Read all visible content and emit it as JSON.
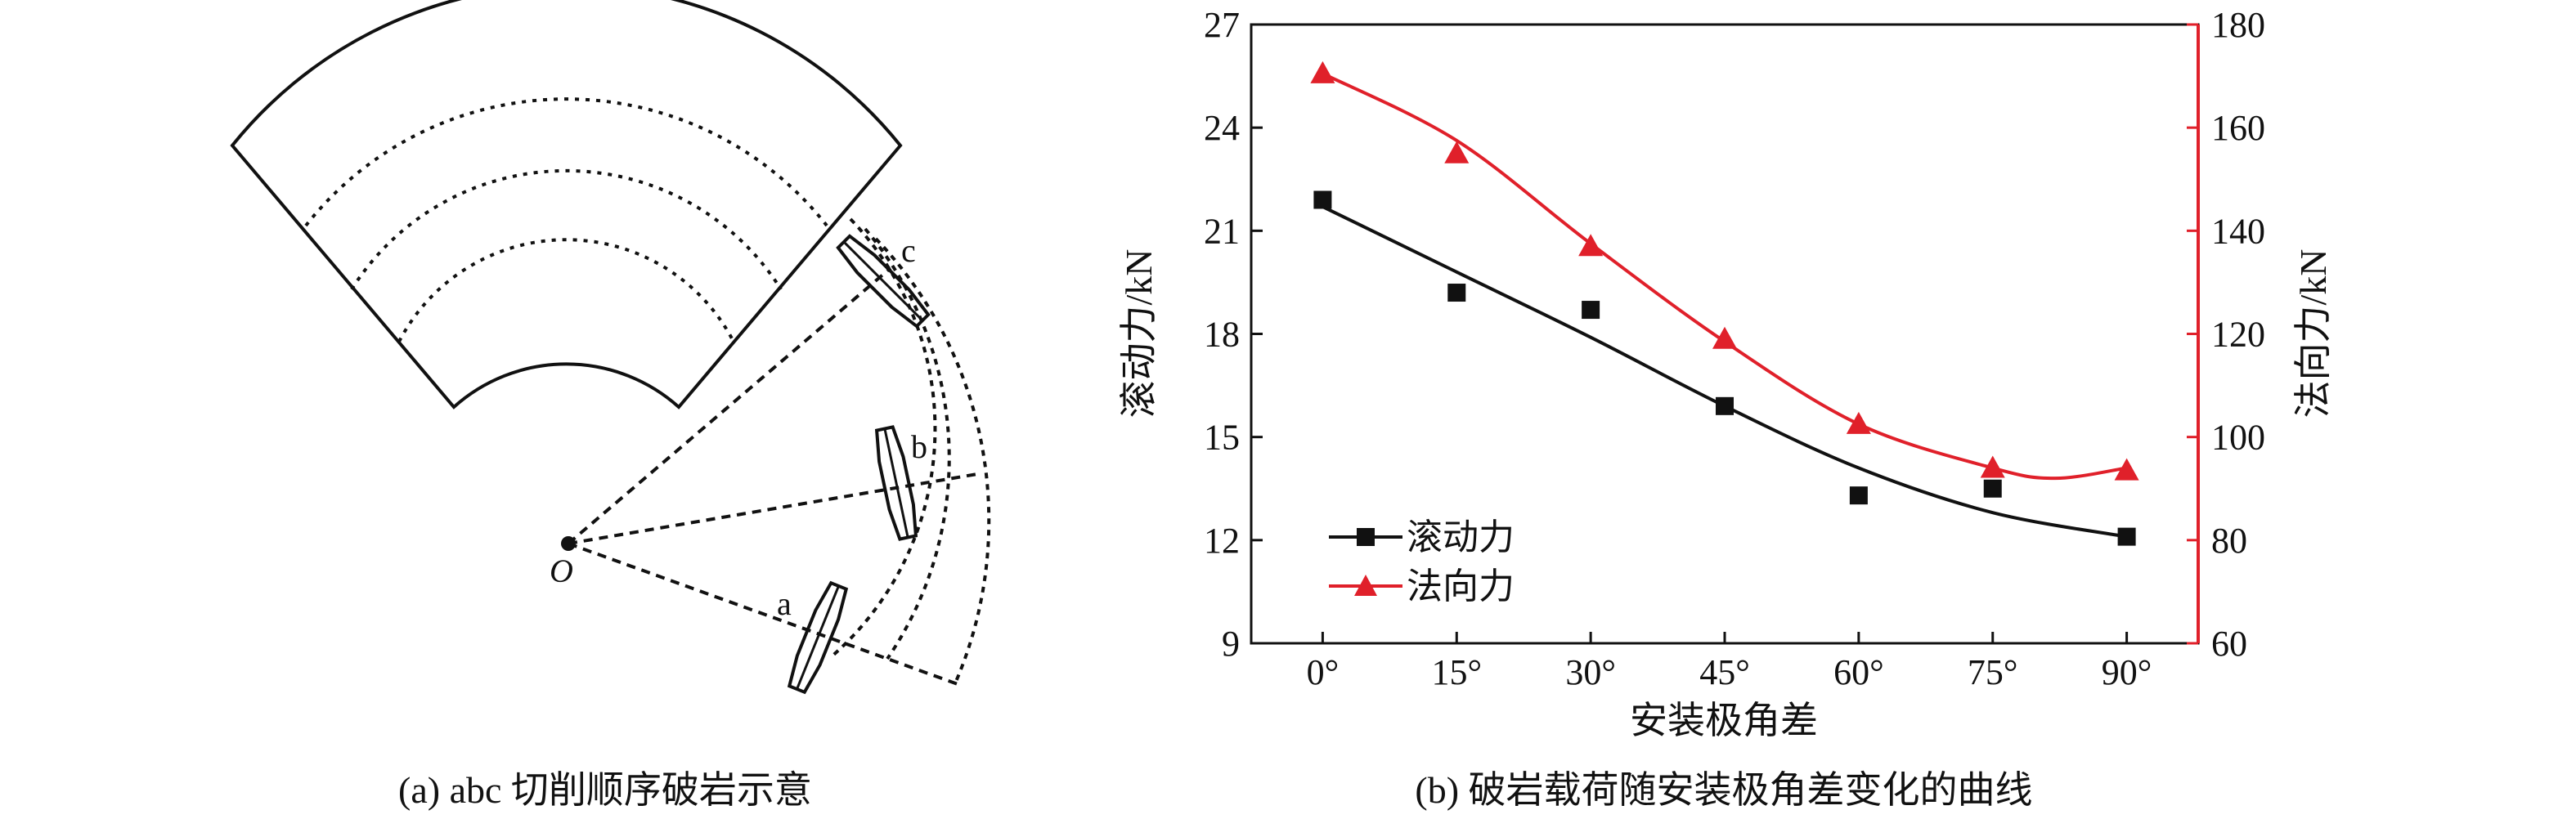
{
  "panel_a": {
    "caption": "(a) abc 切削顺序破岩示意",
    "center_label": "O",
    "cutter_labels": [
      "a",
      "b",
      "c"
    ]
  },
  "panel_b": {
    "caption": "(b) 破岩载荷随安装极角差变化的曲线"
  },
  "chart_data": {
    "type": "line",
    "title": "",
    "xlabel": "安装极角差",
    "ylabel_left": "滚动力/kN",
    "ylabel_right": "法向力/kN",
    "categories": [
      "0°",
      "15°",
      "30°",
      "45°",
      "60°",
      "75°",
      "90°"
    ],
    "x": [
      0,
      15,
      30,
      45,
      60,
      75,
      90
    ],
    "xlim": [
      -8,
      98
    ],
    "ylim_left": [
      9,
      27
    ],
    "yticks_left": [
      9,
      12,
      15,
      18,
      21,
      24,
      27
    ],
    "ylim_right": [
      60,
      180
    ],
    "yticks_right": [
      60,
      80,
      100,
      120,
      140,
      160,
      180
    ],
    "legend_position": "bottom-left",
    "series": [
      {
        "name": "滚动力",
        "axis": "left",
        "color": "#111111",
        "marker": "square",
        "values": [
          21.9,
          19.2,
          18.7,
          15.9,
          13.3,
          13.5,
          12.1
        ],
        "fit": [
          [
            0,
            21.7
          ],
          [
            15,
            19.8
          ],
          [
            30,
            17.9
          ],
          [
            45,
            15.9
          ],
          [
            60,
            14.1
          ],
          [
            75,
            12.8
          ],
          [
            90,
            12.1
          ]
        ]
      },
      {
        "name": "法向力",
        "axis": "right",
        "color": "#e0202a",
        "marker": "triangle",
        "values": [
          170.5,
          155.0,
          137.0,
          119.0,
          102.5,
          94.0,
          93.5
        ],
        "fit": [
          [
            0,
            170.5
          ],
          [
            15,
            157.5
          ],
          [
            30,
            137.5
          ],
          [
            45,
            118.5
          ],
          [
            60,
            102.5
          ],
          [
            75,
            94.0
          ],
          [
            82,
            92.0
          ],
          [
            90,
            94.0
          ]
        ]
      }
    ]
  }
}
